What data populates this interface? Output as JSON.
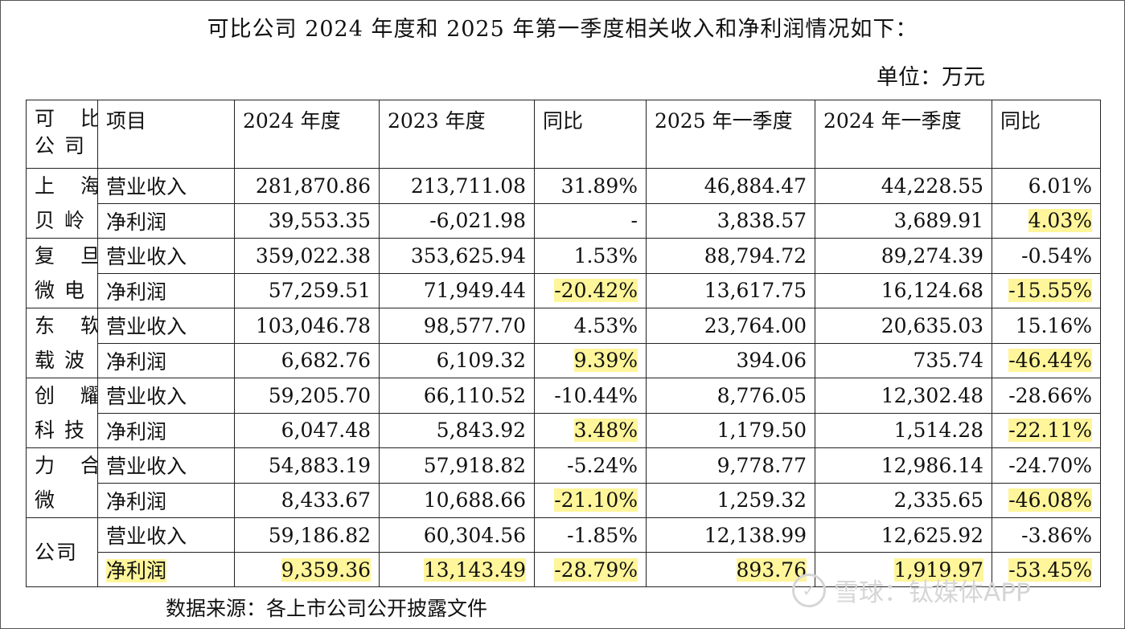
{
  "title": "可比公司 2024 年度和 2025 年第一季度相关收入和净利润情况如下：",
  "unit": "单位：万元",
  "table": {
    "headers": [
      "可 比\n公司",
      "项目",
      "2024 年度",
      "2023 年度",
      "同比",
      "2025 年一季度",
      "2024 年一季度",
      "同比"
    ],
    "companies": [
      {
        "name": "上 海\n贝岭",
        "rows": [
          {
            "item": "营业收入",
            "cells": [
              "281,870.86",
              "213,711.08",
              "31.89%",
              "46,884.47",
              "44,228.55",
              "6.01%"
            ]
          },
          {
            "item": "净利润",
            "cells": [
              "39,553.35",
              "-6,021.98",
              "-",
              "3,838.57",
              "3,689.91",
              "4.03%"
            ]
          }
        ]
      },
      {
        "name": "复 旦\n微电",
        "rows": [
          {
            "item": "营业收入",
            "cells": [
              "359,022.38",
              "353,625.94",
              "1.53%",
              "88,794.72",
              "89,274.39",
              "-0.54%"
            ]
          },
          {
            "item": "净利润",
            "cells": [
              "57,259.51",
              "71,949.44",
              "-20.42%",
              "13,617.75",
              "16,124.68",
              "-15.55%"
            ]
          }
        ]
      },
      {
        "name": "东 软\n载波",
        "rows": [
          {
            "item": "营业收入",
            "cells": [
              "103,046.78",
              "98,577.70",
              "4.53%",
              "23,764.00",
              "20,635.03",
              "15.16%"
            ]
          },
          {
            "item": "净利润",
            "cells": [
              "6,682.76",
              "6,109.32",
              "9.39%",
              "394.06",
              "735.74",
              "-46.44%"
            ]
          }
        ]
      },
      {
        "name": "创 耀\n科技",
        "rows": [
          {
            "item": "营业收入",
            "cells": [
              "59,205.70",
              "66,110.52",
              "-10.44%",
              "8,776.05",
              "12,302.48",
              "-28.66%"
            ]
          },
          {
            "item": "净利润",
            "cells": [
              "6,047.48",
              "5,843.92",
              "3.48%",
              "1,179.50",
              "1,514.28",
              "-22.11%"
            ]
          }
        ]
      },
      {
        "name": "力 合\n微",
        "rows": [
          {
            "item": "营业收入",
            "cells": [
              "54,883.19",
              "57,918.82",
              "-5.24%",
              "9,778.77",
              "12,986.14",
              "-24.70%"
            ]
          },
          {
            "item": "净利润",
            "cells": [
              "8,433.67",
              "10,688.66",
              "-21.10%",
              "1,259.32",
              "2,335.65",
              "-46.08%"
            ]
          }
        ]
      },
      {
        "name": "公司",
        "rows": [
          {
            "item": "营业收入",
            "cells": [
              "59,186.82",
              "60,304.56",
              "-1.85%",
              "12,138.99",
              "12,625.92",
              "-3.86%"
            ]
          },
          {
            "item": "净利润",
            "cells": [
              "9,359.36",
              "13,143.49",
              "-28.79%",
              "893.76",
              "1,919.97",
              "-53.45%"
            ]
          }
        ]
      }
    ]
  },
  "highlight_color": "#fff59a",
  "source": "数据来源：各上市公司公开披露文件",
  "watermark": {
    "icon": "snowball-logo-icon",
    "text": "雪球：钛媒体APP"
  }
}
